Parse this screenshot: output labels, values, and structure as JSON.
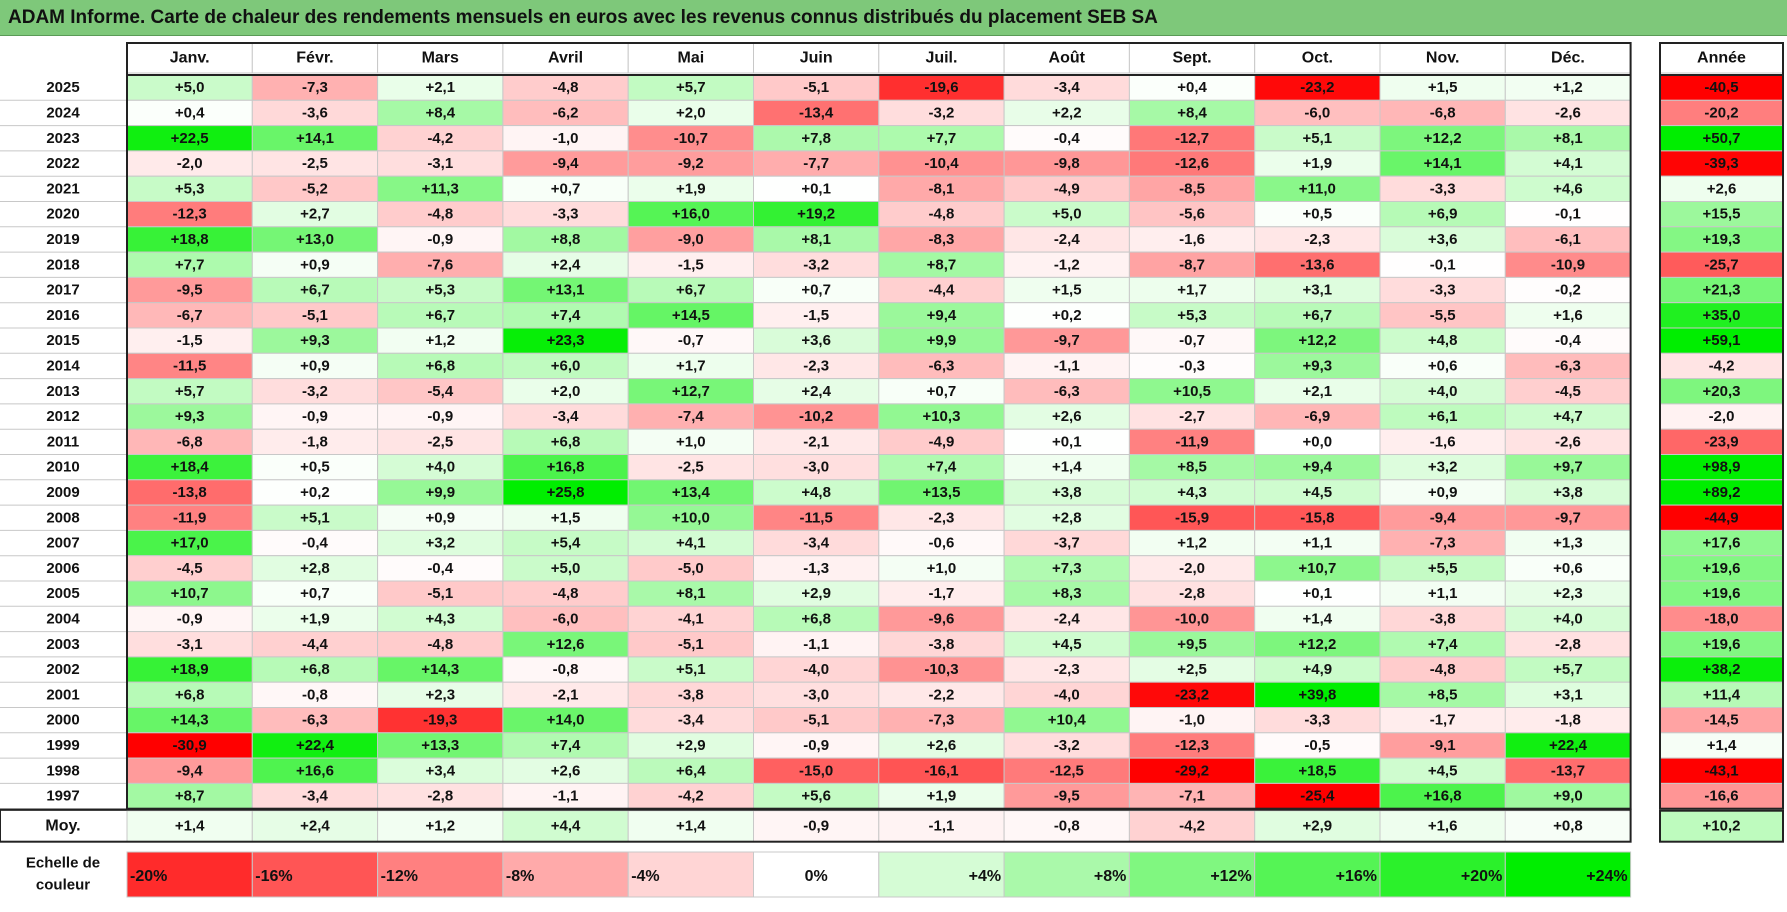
{
  "title": "ADAM Informe. Carte de chaleur des rendements mensuels en euros avec les revenus connus distribués du placement SEB SA",
  "year_column_label": "Année",
  "average_row_label": "Moy.",
  "scale_label_line1": "Echelle de",
  "scale_label_line2": "couleur",
  "colors": {
    "title_bar": "#7ec87a",
    "negative_max": "#ff0000",
    "neutral": "#ffffff",
    "positive_max": "#00ee00",
    "grid_line": "#c8c8c8",
    "frame": "#222222"
  },
  "chart_data": {
    "type": "heatmap",
    "title": "ADAM Informe. Carte de chaleur des rendements mensuels en euros avec les revenus connus distribués du placement SEB SA",
    "unit": "%",
    "x_categories": [
      "Janv.",
      "Févr.",
      "Mars",
      "Avril",
      "Mai",
      "Juin",
      "Juil.",
      "Août",
      "Sept.",
      "Oct.",
      "Nov.",
      "Déc."
    ],
    "rows": [
      {
        "year": "2025",
        "values": [
          5.0,
          -7.3,
          2.1,
          -4.8,
          5.7,
          -5.1,
          -19.6,
          -3.4,
          0.4,
          -23.2,
          1.5,
          1.2
        ],
        "annual": -40.5
      },
      {
        "year": "2024",
        "values": [
          0.4,
          -3.6,
          8.4,
          -6.2,
          2.0,
          -13.4,
          -3.2,
          2.2,
          8.4,
          -6.0,
          -6.8,
          -2.6
        ],
        "annual": -20.2
      },
      {
        "year": "2023",
        "values": [
          22.5,
          14.1,
          -4.2,
          -1.0,
          -10.7,
          7.8,
          7.7,
          -0.4,
          -12.7,
          5.1,
          12.2,
          8.1
        ],
        "annual": 50.7
      },
      {
        "year": "2022",
        "values": [
          -2.0,
          -2.5,
          -3.1,
          -9.4,
          -9.2,
          -7.7,
          -10.4,
          -9.8,
          -12.6,
          1.9,
          14.1,
          4.1
        ],
        "annual": -39.3
      },
      {
        "year": "2021",
        "values": [
          5.3,
          -5.2,
          11.3,
          0.7,
          1.9,
          0.1,
          -8.1,
          -4.9,
          -8.5,
          11.0,
          -3.3,
          4.6
        ],
        "annual": 2.6
      },
      {
        "year": "2020",
        "values": [
          -12.3,
          2.7,
          -4.8,
          -3.3,
          16.0,
          19.2,
          -4.8,
          5.0,
          -5.6,
          0.5,
          6.9,
          -0.1
        ],
        "annual": 15.5
      },
      {
        "year": "2019",
        "values": [
          18.8,
          13.0,
          -0.9,
          8.8,
          -9.0,
          8.1,
          -8.3,
          -2.4,
          -1.6,
          -2.3,
          3.6,
          -6.1
        ],
        "annual": 19.3
      },
      {
        "year": "2018",
        "values": [
          7.7,
          0.9,
          -7.6,
          2.4,
          -1.5,
          -3.2,
          8.7,
          -1.2,
          -8.7,
          -13.6,
          -0.1,
          -10.9
        ],
        "annual": -25.7
      },
      {
        "year": "2017",
        "values": [
          -9.5,
          6.7,
          5.3,
          13.1,
          6.7,
          0.7,
          -4.4,
          1.5,
          1.7,
          3.1,
          -3.3,
          -0.2
        ],
        "annual": 21.3
      },
      {
        "year": "2016",
        "values": [
          -6.7,
          -5.1,
          6.7,
          7.4,
          14.5,
          -1.5,
          9.4,
          0.2,
          5.3,
          6.7,
          -5.5,
          1.6
        ],
        "annual": 35.0
      },
      {
        "year": "2015",
        "values": [
          -1.5,
          9.3,
          1.2,
          23.3,
          -0.7,
          3.6,
          9.9,
          -9.7,
          -0.7,
          12.2,
          4.8,
          -0.4
        ],
        "annual": 59.1
      },
      {
        "year": "2014",
        "values": [
          -11.5,
          0.9,
          6.8,
          6.0,
          1.7,
          -2.3,
          -6.3,
          -1.1,
          -0.3,
          9.3,
          0.6,
          -6.3
        ],
        "annual": -4.2
      },
      {
        "year": "2013",
        "values": [
          5.7,
          -3.2,
          -5.4,
          2.0,
          12.7,
          2.4,
          0.7,
          -6.3,
          10.5,
          2.1,
          4.0,
          -4.5
        ],
        "annual": 20.3
      },
      {
        "year": "2012",
        "values": [
          9.3,
          -0.9,
          -0.9,
          -3.4,
          -7.4,
          -10.2,
          10.3,
          2.6,
          -2.7,
          -6.9,
          6.1,
          4.7
        ],
        "annual": -2.0
      },
      {
        "year": "2011",
        "values": [
          -6.8,
          -1.8,
          -2.5,
          6.8,
          1.0,
          -2.1,
          -4.9,
          0.1,
          -11.9,
          0.0,
          -1.6,
          -2.6
        ],
        "annual": -23.9
      },
      {
        "year": "2010",
        "values": [
          18.4,
          0.5,
          4.0,
          16.8,
          -2.5,
          -3.0,
          7.4,
          1.4,
          8.5,
          9.4,
          3.2,
          9.7
        ],
        "annual": 98.9
      },
      {
        "year": "2009",
        "values": [
          -13.8,
          0.2,
          9.9,
          25.8,
          13.4,
          4.8,
          13.5,
          3.8,
          4.3,
          4.5,
          0.9,
          3.8
        ],
        "annual": 89.2
      },
      {
        "year": "2008",
        "values": [
          -11.9,
          5.1,
          0.9,
          1.5,
          10.0,
          -11.5,
          -2.3,
          2.8,
          -15.9,
          -15.8,
          -9.4,
          -9.7
        ],
        "annual": -44.9
      },
      {
        "year": "2007",
        "values": [
          17.0,
          -0.4,
          3.2,
          5.4,
          4.1,
          -3.4,
          -0.6,
          -3.7,
          1.2,
          1.1,
          -7.3,
          1.3
        ],
        "annual": 17.6
      },
      {
        "year": "2006",
        "values": [
          -4.5,
          2.8,
          -0.4,
          5.0,
          -5.0,
          -1.3,
          1.0,
          7.3,
          -2.0,
          10.7,
          5.5,
          0.6
        ],
        "annual": 19.6
      },
      {
        "year": "2005",
        "values": [
          10.7,
          0.7,
          -5.1,
          -4.8,
          8.1,
          2.9,
          -1.7,
          8.3,
          -2.8,
          0.1,
          1.1,
          2.3
        ],
        "annual": 19.6
      },
      {
        "year": "2004",
        "values": [
          -0.9,
          1.9,
          4.3,
          -6.0,
          -4.1,
          6.8,
          -9.6,
          -2.4,
          -10.0,
          1.4,
          -3.8,
          4.0
        ],
        "annual": -18.0
      },
      {
        "year": "2003",
        "values": [
          -3.1,
          -4.4,
          -4.8,
          12.6,
          -5.1,
          -1.1,
          -3.8,
          4.5,
          9.5,
          12.2,
          7.4,
          -2.8
        ],
        "annual": 19.6
      },
      {
        "year": "2002",
        "values": [
          18.9,
          6.8,
          14.3,
          -0.8,
          5.1,
          -4.0,
          -10.3,
          -2.3,
          2.5,
          4.9,
          -4.8,
          5.7
        ],
        "annual": 38.2
      },
      {
        "year": "2001",
        "values": [
          6.8,
          -0.8,
          2.3,
          -2.1,
          -3.8,
          -3.0,
          -2.2,
          -4.0,
          -23.2,
          39.8,
          8.5,
          3.1
        ],
        "annual": 11.4
      },
      {
        "year": "2000",
        "values": [
          14.3,
          -6.3,
          -19.3,
          14.0,
          -3.4,
          -5.1,
          -7.3,
          10.4,
          -1.0,
          -3.3,
          -1.7,
          -1.8
        ],
        "annual": -14.5
      },
      {
        "year": "1999",
        "values": [
          -30.9,
          22.4,
          13.3,
          7.4,
          2.9,
          -0.9,
          2.6,
          -3.2,
          -12.3,
          -0.5,
          -9.1,
          22.4
        ],
        "annual": 1.4
      },
      {
        "year": "1998",
        "values": [
          -9.4,
          16.6,
          3.4,
          2.6,
          6.4,
          -15.0,
          -16.1,
          -12.5,
          -29.2,
          18.5,
          4.5,
          -13.7
        ],
        "annual": -43.1
      },
      {
        "year": "1997",
        "values": [
          8.7,
          -3.4,
          -2.8,
          -1.1,
          -4.2,
          5.6,
          1.9,
          -9.5,
          -7.1,
          -25.4,
          16.8,
          9.0
        ],
        "annual": -16.6
      }
    ],
    "average": {
      "label": "Moy.",
      "values": [
        1.4,
        2.4,
        1.2,
        4.4,
        1.4,
        -0.9,
        -1.1,
        -0.8,
        -4.2,
        2.9,
        1.6,
        0.8
      ],
      "annual": 10.2
    },
    "color_scale": {
      "label": "Echelle de couleur",
      "stops": [
        {
          "value": -20,
          "label": "-20%"
        },
        {
          "value": -16,
          "label": "-16%"
        },
        {
          "value": -12,
          "label": "-12%"
        },
        {
          "value": -8,
          "label": "-8%"
        },
        {
          "value": -4,
          "label": "-4%"
        },
        {
          "value": 0,
          "label": "0%"
        },
        {
          "value": 4,
          "label": "+4%"
        },
        {
          "value": 8,
          "label": "+8%"
        },
        {
          "value": 12,
          "label": "+12%"
        },
        {
          "value": 16,
          "label": "+16%"
        },
        {
          "value": 20,
          "label": "+20%"
        },
        {
          "value": 24,
          "label": "+24%"
        }
      ]
    }
  }
}
